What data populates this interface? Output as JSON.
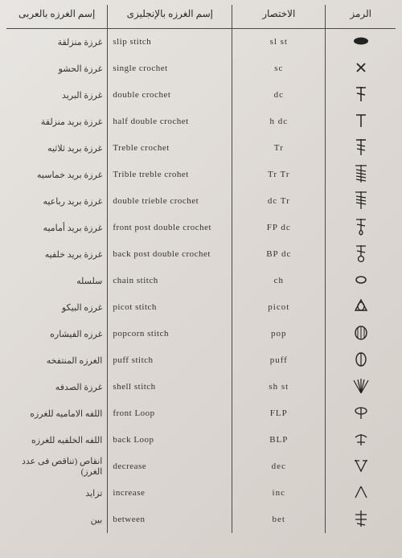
{
  "headers": {
    "arabic": "إسم الغرزه بالعربى",
    "english": "إسم الغرزه بالإنجليزى",
    "abbrev": "الاختصار",
    "symbol": "الرمز"
  },
  "rows": [
    {
      "ar": "غرزة منزلقة",
      "en": "slip stitch",
      "ab": "sl st",
      "sym": "oval"
    },
    {
      "ar": "غرزة الحشو",
      "en": "single crochet",
      "ab": "sc",
      "sym": "x"
    },
    {
      "ar": "غرزة البريد",
      "en": "double crochet",
      "ab": "dc",
      "sym": "dc"
    },
    {
      "ar": "غرزة بريد منزلقة",
      "en": "half double crochet",
      "ab": "h dc",
      "sym": "hdc"
    },
    {
      "ar": "غرزة بريد ثلاثيه",
      "en": "Treble crochet",
      "ab": "Tr",
      "sym": "tr"
    },
    {
      "ar": "غرزة بريد خماسيه",
      "en": "Trible treble crohet",
      "ab": "Tr Tr",
      "sym": "trtr"
    },
    {
      "ar": "غرزة بريد رباعيه",
      "en": "double trieble crochet",
      "ab": "dc Tr",
      "sym": "dtr"
    },
    {
      "ar": "غرزة بريد أماميه",
      "en": "front post double crochet",
      "ab": "FP dc",
      "sym": "fp"
    },
    {
      "ar": "غرزة بريد خلفيه",
      "en": "back post double crochet",
      "ab": "BP dc",
      "sym": "bp"
    },
    {
      "ar": "سلسله",
      "en": "chain stitch",
      "ab": "ch",
      "sym": "ch"
    },
    {
      "ar": "غرزه البيكو",
      "en": "picot stitch",
      "ab": "picot",
      "sym": "picot"
    },
    {
      "ar": "غرزه الفيشاره",
      "en": "popcorn stitch",
      "ab": "pop",
      "sym": "pop"
    },
    {
      "ar": "الغرزه المنتفخه",
      "en": "puff stitch",
      "ab": "puff",
      "sym": "puff"
    },
    {
      "ar": "غرزة الصدفه",
      "en": "shell stitch",
      "ab": "sh st",
      "sym": "shell"
    },
    {
      "ar": "اللفه الاماميه للغرزه",
      "en": "front Loop",
      "ab": "FLP",
      "sym": "flp"
    },
    {
      "ar": "اللفه الخلفيه للغرزه",
      "en": "back Loop",
      "ab": "BLP",
      "sym": "blp"
    },
    {
      "ar": "انقاص (تناقص فى عدد الغرز)",
      "en": "decrease",
      "ab": "dec",
      "sym": "dec"
    },
    {
      "ar": "تزايد",
      "en": "increase",
      "ab": "inc",
      "sym": "inc"
    },
    {
      "ar": "بين",
      "en": "between",
      "ab": "bet",
      "sym": "bet"
    }
  ],
  "symbol_svgs": {
    "oval": "<svg width='22' height='12' viewBox='0 0 22 12'><ellipse cx='11' cy='6' rx='9' ry='4.5' fill='#222'/></svg>",
    "x": "<svg width='16' height='16' viewBox='0 0 16 16'><path d='M3 3 L13 13 M13 3 L3 13' stroke='#222' stroke-width='1.8' fill='none'/></svg>",
    "dc": "<svg width='18' height='22' viewBox='0 0 18 22'><path d='M9 2 L9 20 M3 3 L15 3 M4 10 L14 12' stroke='#222' stroke-width='1.5' fill='none'/></svg>",
    "hdc": "<svg width='18' height='20' viewBox='0 0 18 20'><path d='M9 3 L9 18 M3 3 L15 3' stroke='#222' stroke-width='1.5' fill='none'/></svg>",
    "tr": "<svg width='18' height='24' viewBox='0 0 18 24'><path d='M9 2 L9 22 M3 3 L15 3 M4 9 L14 11 M4 14 L14 16' stroke='#222' stroke-width='1.4' fill='none'/></svg>",
    "trtr": "<svg width='20' height='26' viewBox='0 0 20 26'><path d='M10 2 L10 24 M3 3 L17 3 M4 8 L16 10 M4 12 L16 14 M4 16 L16 18 M4 20 L16 22' stroke='#222' stroke-width='1.2' fill='none'/></svg>",
    "dtr": "<svg width='20' height='26' viewBox='0 0 20 26'><path d='M10 2 L10 24 M3 3 L17 3 M4 8 L16 10 M4 12 L16 14 M4 16 L16 18' stroke='#222' stroke-width='1.3' fill='none'/></svg>",
    "fp": "<svg width='20' height='24' viewBox='0 0 20 24'><path d='M10 2 L10 16 M4 3 L16 3 M5 9 L15 11 M10 16 Q6 20 10 22 Q14 20 10 16' stroke='#222' stroke-width='1.3' fill='none'/></svg>",
    "bp": "<svg width='20' height='24' viewBox='0 0 20 24'><path d='M10 2 L10 16 M4 3 L16 3 M5 9 L15 11' stroke='#222' stroke-width='1.3' fill='none'/><circle cx='10' cy='19' r='3.5' stroke='#222' stroke-width='1.3' fill='none'/></svg>",
    "ch": "<svg width='18' height='14' viewBox='0 0 18 14'><ellipse cx='9' cy='7' rx='6' ry='4' stroke='#222' stroke-width='1.5' fill='none'/></svg>",
    "picot": "<svg width='22' height='22' viewBox='0 0 22 22'><path d='M11 3 L4 16 L18 16 Z' stroke='#222' stroke-width='1.4' fill='none'/><ellipse cx='11' cy='11' rx='4' ry='5' stroke='#222' stroke-width='1.2' fill='none'/></svg>",
    "pop": "<svg width='22' height='22' viewBox='0 0 22 22'><ellipse cx='11' cy='11' rx='7' ry='8' stroke='#222' stroke-width='1.4' fill='none'/><path d='M7 5 L7 17 M11 4 L11 18 M15 5 L15 17' stroke='#222' stroke-width='1' fill='none'/></svg>",
    "puff": "<svg width='20' height='22' viewBox='0 0 20 22'><ellipse cx='10' cy='11' rx='6' ry='8' stroke='#222' stroke-width='1.4' fill='none'/><path d='M10 3 L10 19' stroke='#222' stroke-width='1.2' fill='none'/></svg>",
    "shell": "<svg width='24' height='22' viewBox='0 0 24 22'><path d='M12 20 L3 4 M12 20 L8 3 M12 20 L12 2 M12 20 L16 3 M12 20 L21 4' stroke='#222' stroke-width='1.2' fill='none'/></svg>",
    "flp": "<svg width='22' height='20' viewBox='0 0 22 20'><ellipse cx='11' cy='8' rx='7' ry='4' stroke='#222' stroke-width='1.3' fill='none'/><path d='M11 4 L11 18' stroke='#222' stroke-width='1.3' fill='none'/></svg>",
    "blp": "<svg width='22' height='20' viewBox='0 0 22 20'><path d='M4 8 Q11 2 18 8' stroke='#222' stroke-width='1.3' fill='none'/><path d='M11 4 L11 18 M6 14 L16 14' stroke='#222' stroke-width='1.3' fill='none'/></svg>",
    "dec": "<svg width='24' height='20' viewBox='0 0 24 20'><path d='M5 3 L12 17 L19 3 M4 4 L10 4 M14 4 L20 4' stroke='#222' stroke-width='1.3' fill='none'/></svg>",
    "inc": "<svg width='24' height='20' viewBox='0 0 24 20'><path d='M12 3 L5 17 M12 3 L19 17' stroke='#222' stroke-width='1.3' fill='none'/></svg>",
    "bet": "<svg width='22' height='24' viewBox='0 0 22 24'><path d='M11 2 L11 22 M4 7 L18 7 M4 13 L18 13 M6 18 L16 20' stroke='#222' stroke-width='1.3' fill='none'/></svg>"
  }
}
